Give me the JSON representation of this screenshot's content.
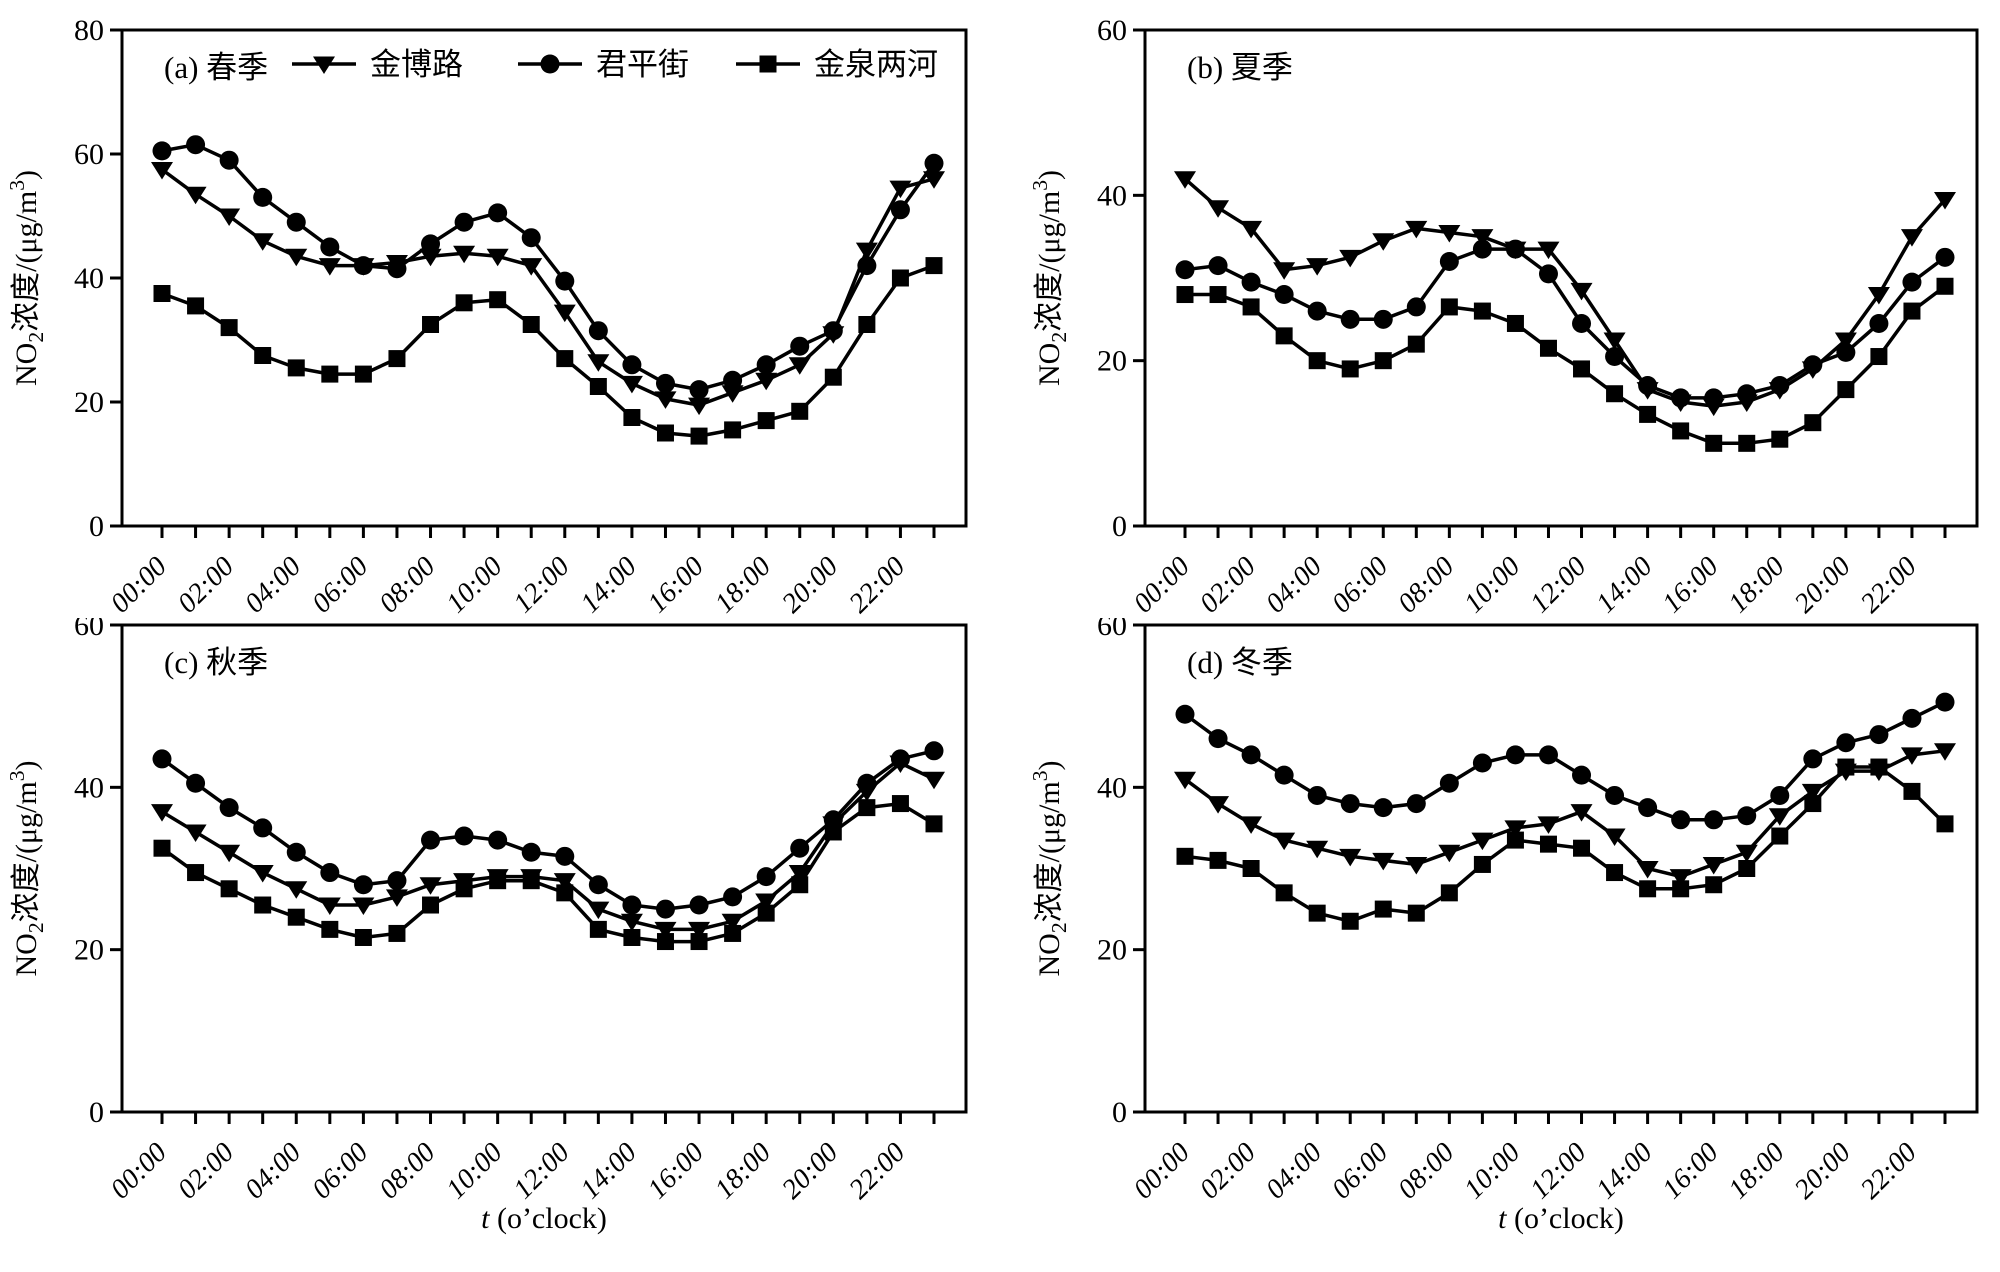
{
  "figure": {
    "background": "#ffffff",
    "line_color": "#000000",
    "ylabel_parts": [
      {
        "t": "NO"
      },
      {
        "t": "2",
        "style": "sub"
      },
      {
        "t": "浓度/(μg/m",
        "style": "normal"
      },
      {
        "t": "3",
        "style": "sup"
      },
      {
        "t": ")",
        "style": "normal"
      }
    ],
    "xlabel_parts": [
      {
        "t": "t",
        "style": "italic"
      },
      {
        "t": " (o’clock)",
        "style": "normal"
      }
    ],
    "hours": [
      "00:00",
      "01:00",
      "02:00",
      "03:00",
      "04:00",
      "05:00",
      "06:00",
      "07:00",
      "08:00",
      "09:00",
      "10:00",
      "11:00",
      "12:00",
      "13:00",
      "14:00",
      "15:00",
      "16:00",
      "17:00",
      "18:00",
      "19:00",
      "20:00",
      "21:00",
      "22:00",
      "23:00"
    ],
    "x_tick_labels": [
      "00:00",
      "02:00",
      "04:00",
      "06:00",
      "08:00",
      "10:00",
      "12:00",
      "14:00",
      "16:00",
      "18:00",
      "20:00",
      "22:00"
    ]
  },
  "legend": {
    "position": "inside-top-panel-a",
    "items": [
      {
        "label": "金博路",
        "marker": "triangle-down"
      },
      {
        "label": "君平街",
        "marker": "circle"
      },
      {
        "label": "金泉两河",
        "marker": "square"
      }
    ]
  },
  "chart_data": [
    {
      "id": "a",
      "panel_label": "(a) 春季",
      "type": "line",
      "grid": false,
      "ylim": [
        0,
        80
      ],
      "yticks": [
        0,
        20,
        40,
        60,
        80
      ],
      "legend_visible": true,
      "show_xlabel": false,
      "series": [
        {
          "name": "金博路",
          "marker": "triangle-down",
          "values": [
            57.5,
            53.5,
            50,
            46,
            43.5,
            42,
            42,
            42.5,
            43.5,
            44,
            43.5,
            42,
            34.5,
            26.5,
            23,
            20.5,
            19.5,
            21.5,
            23.5,
            26,
            31,
            44.5,
            54.5,
            56
          ]
        },
        {
          "name": "君平街",
          "marker": "circle",
          "values": [
            60.5,
            61.5,
            59,
            53,
            49,
            45,
            42,
            41.5,
            45.5,
            49,
            50.5,
            46.5,
            39.5,
            31.5,
            26,
            23,
            22,
            23.5,
            26,
            29,
            31.5,
            42,
            51,
            58.5
          ]
        },
        {
          "name": "金泉两河",
          "marker": "square",
          "values": [
            37.5,
            35.5,
            32,
            27.5,
            25.5,
            24.5,
            24.5,
            27,
            32.5,
            36,
            36.5,
            32.5,
            27,
            22.5,
            17.5,
            15,
            14.5,
            15.5,
            17,
            18.5,
            24,
            32.5,
            40,
            42
          ]
        }
      ]
    },
    {
      "id": "b",
      "panel_label": "(b) 夏季",
      "type": "line",
      "grid": false,
      "ylim": [
        0,
        60
      ],
      "yticks": [
        0,
        20,
        40,
        60
      ],
      "legend_visible": false,
      "show_xlabel": false,
      "series": [
        {
          "name": "金博路",
          "marker": "triangle-down",
          "values": [
            42,
            38.5,
            36,
            31,
            31.5,
            32.5,
            34.5,
            36,
            35.5,
            35,
            33.5,
            33.5,
            28.5,
            22.5,
            16.5,
            15,
            14.5,
            15,
            16.5,
            19,
            22.5,
            28,
            35,
            39.5
          ]
        },
        {
          "name": "君平街",
          "marker": "circle",
          "values": [
            31,
            31.5,
            29.5,
            28,
            26,
            25,
            25,
            26.5,
            32,
            33.5,
            33.5,
            30.5,
            24.5,
            20.5,
            17,
            15.5,
            15.5,
            16,
            17,
            19.5,
            21,
            24.5,
            29.5,
            32.5
          ]
        },
        {
          "name": "金泉两河",
          "marker": "square",
          "values": [
            28,
            28,
            26.5,
            23,
            20,
            19,
            20,
            22,
            26.5,
            26,
            24.5,
            21.5,
            19,
            16,
            13.5,
            11.5,
            10,
            10,
            10.5,
            12.5,
            16.5,
            20.5,
            26,
            29
          ]
        }
      ]
    },
    {
      "id": "c",
      "panel_label": "(c) 秋季",
      "type": "line",
      "grid": false,
      "ylim": [
        0,
        60
      ],
      "yticks": [
        0,
        20,
        40,
        60
      ],
      "legend_visible": false,
      "show_xlabel": true,
      "series": [
        {
          "name": "金博路",
          "marker": "triangle-down",
          "values": [
            37,
            34.5,
            32,
            29.5,
            27.5,
            25.5,
            25.5,
            26.5,
            28,
            28.5,
            29,
            29,
            28.5,
            25,
            23.5,
            22.5,
            22.5,
            23.5,
            26,
            29.5,
            35.5,
            39.5,
            43,
            41
          ]
        },
        {
          "name": "君平街",
          "marker": "circle",
          "values": [
            43.5,
            40.5,
            37.5,
            35,
            32,
            29.5,
            28,
            28.5,
            33.5,
            34,
            33.5,
            32,
            31.5,
            28,
            25.5,
            25,
            25.5,
            26.5,
            29,
            32.5,
            36,
            40.5,
            43.5,
            44.5
          ]
        },
        {
          "name": "金泉两河",
          "marker": "square",
          "values": [
            32.5,
            29.5,
            27.5,
            25.5,
            24,
            22.5,
            21.5,
            22,
            25.5,
            27.5,
            28.5,
            28.5,
            27,
            22.5,
            21.5,
            21,
            21,
            22,
            24.5,
            28,
            34.5,
            37.5,
            38,
            35.5
          ]
        }
      ]
    },
    {
      "id": "d",
      "panel_label": "(d) 冬季",
      "type": "line",
      "grid": false,
      "ylim": [
        0,
        60
      ],
      "yticks": [
        0,
        20,
        40,
        60
      ],
      "legend_visible": false,
      "show_xlabel": true,
      "series": [
        {
          "name": "金博路",
          "marker": "triangle-down",
          "values": [
            41,
            38,
            35.5,
            33.5,
            32.5,
            31.5,
            31,
            30.5,
            32,
            33.5,
            35,
            35.5,
            37,
            34,
            30,
            29,
            30.5,
            32,
            36.5,
            39.5,
            42,
            42,
            44,
            44.5
          ]
        },
        {
          "name": "君平街",
          "marker": "circle",
          "values": [
            49,
            46,
            44,
            41.5,
            39,
            38,
            37.5,
            38,
            40.5,
            43,
            44,
            44,
            41.5,
            39,
            37.5,
            36,
            36,
            36.5,
            39,
            43.5,
            45.5,
            46.5,
            48.5,
            50.5
          ]
        },
        {
          "name": "金泉两河",
          "marker": "square",
          "values": [
            31.5,
            31,
            30,
            27,
            24.5,
            23.5,
            25,
            24.5,
            27,
            30.5,
            33.5,
            33,
            32.5,
            29.5,
            27.5,
            27.5,
            28,
            30,
            34,
            38,
            42.5,
            42.5,
            39.5,
            35.5
          ]
        }
      ]
    }
  ]
}
